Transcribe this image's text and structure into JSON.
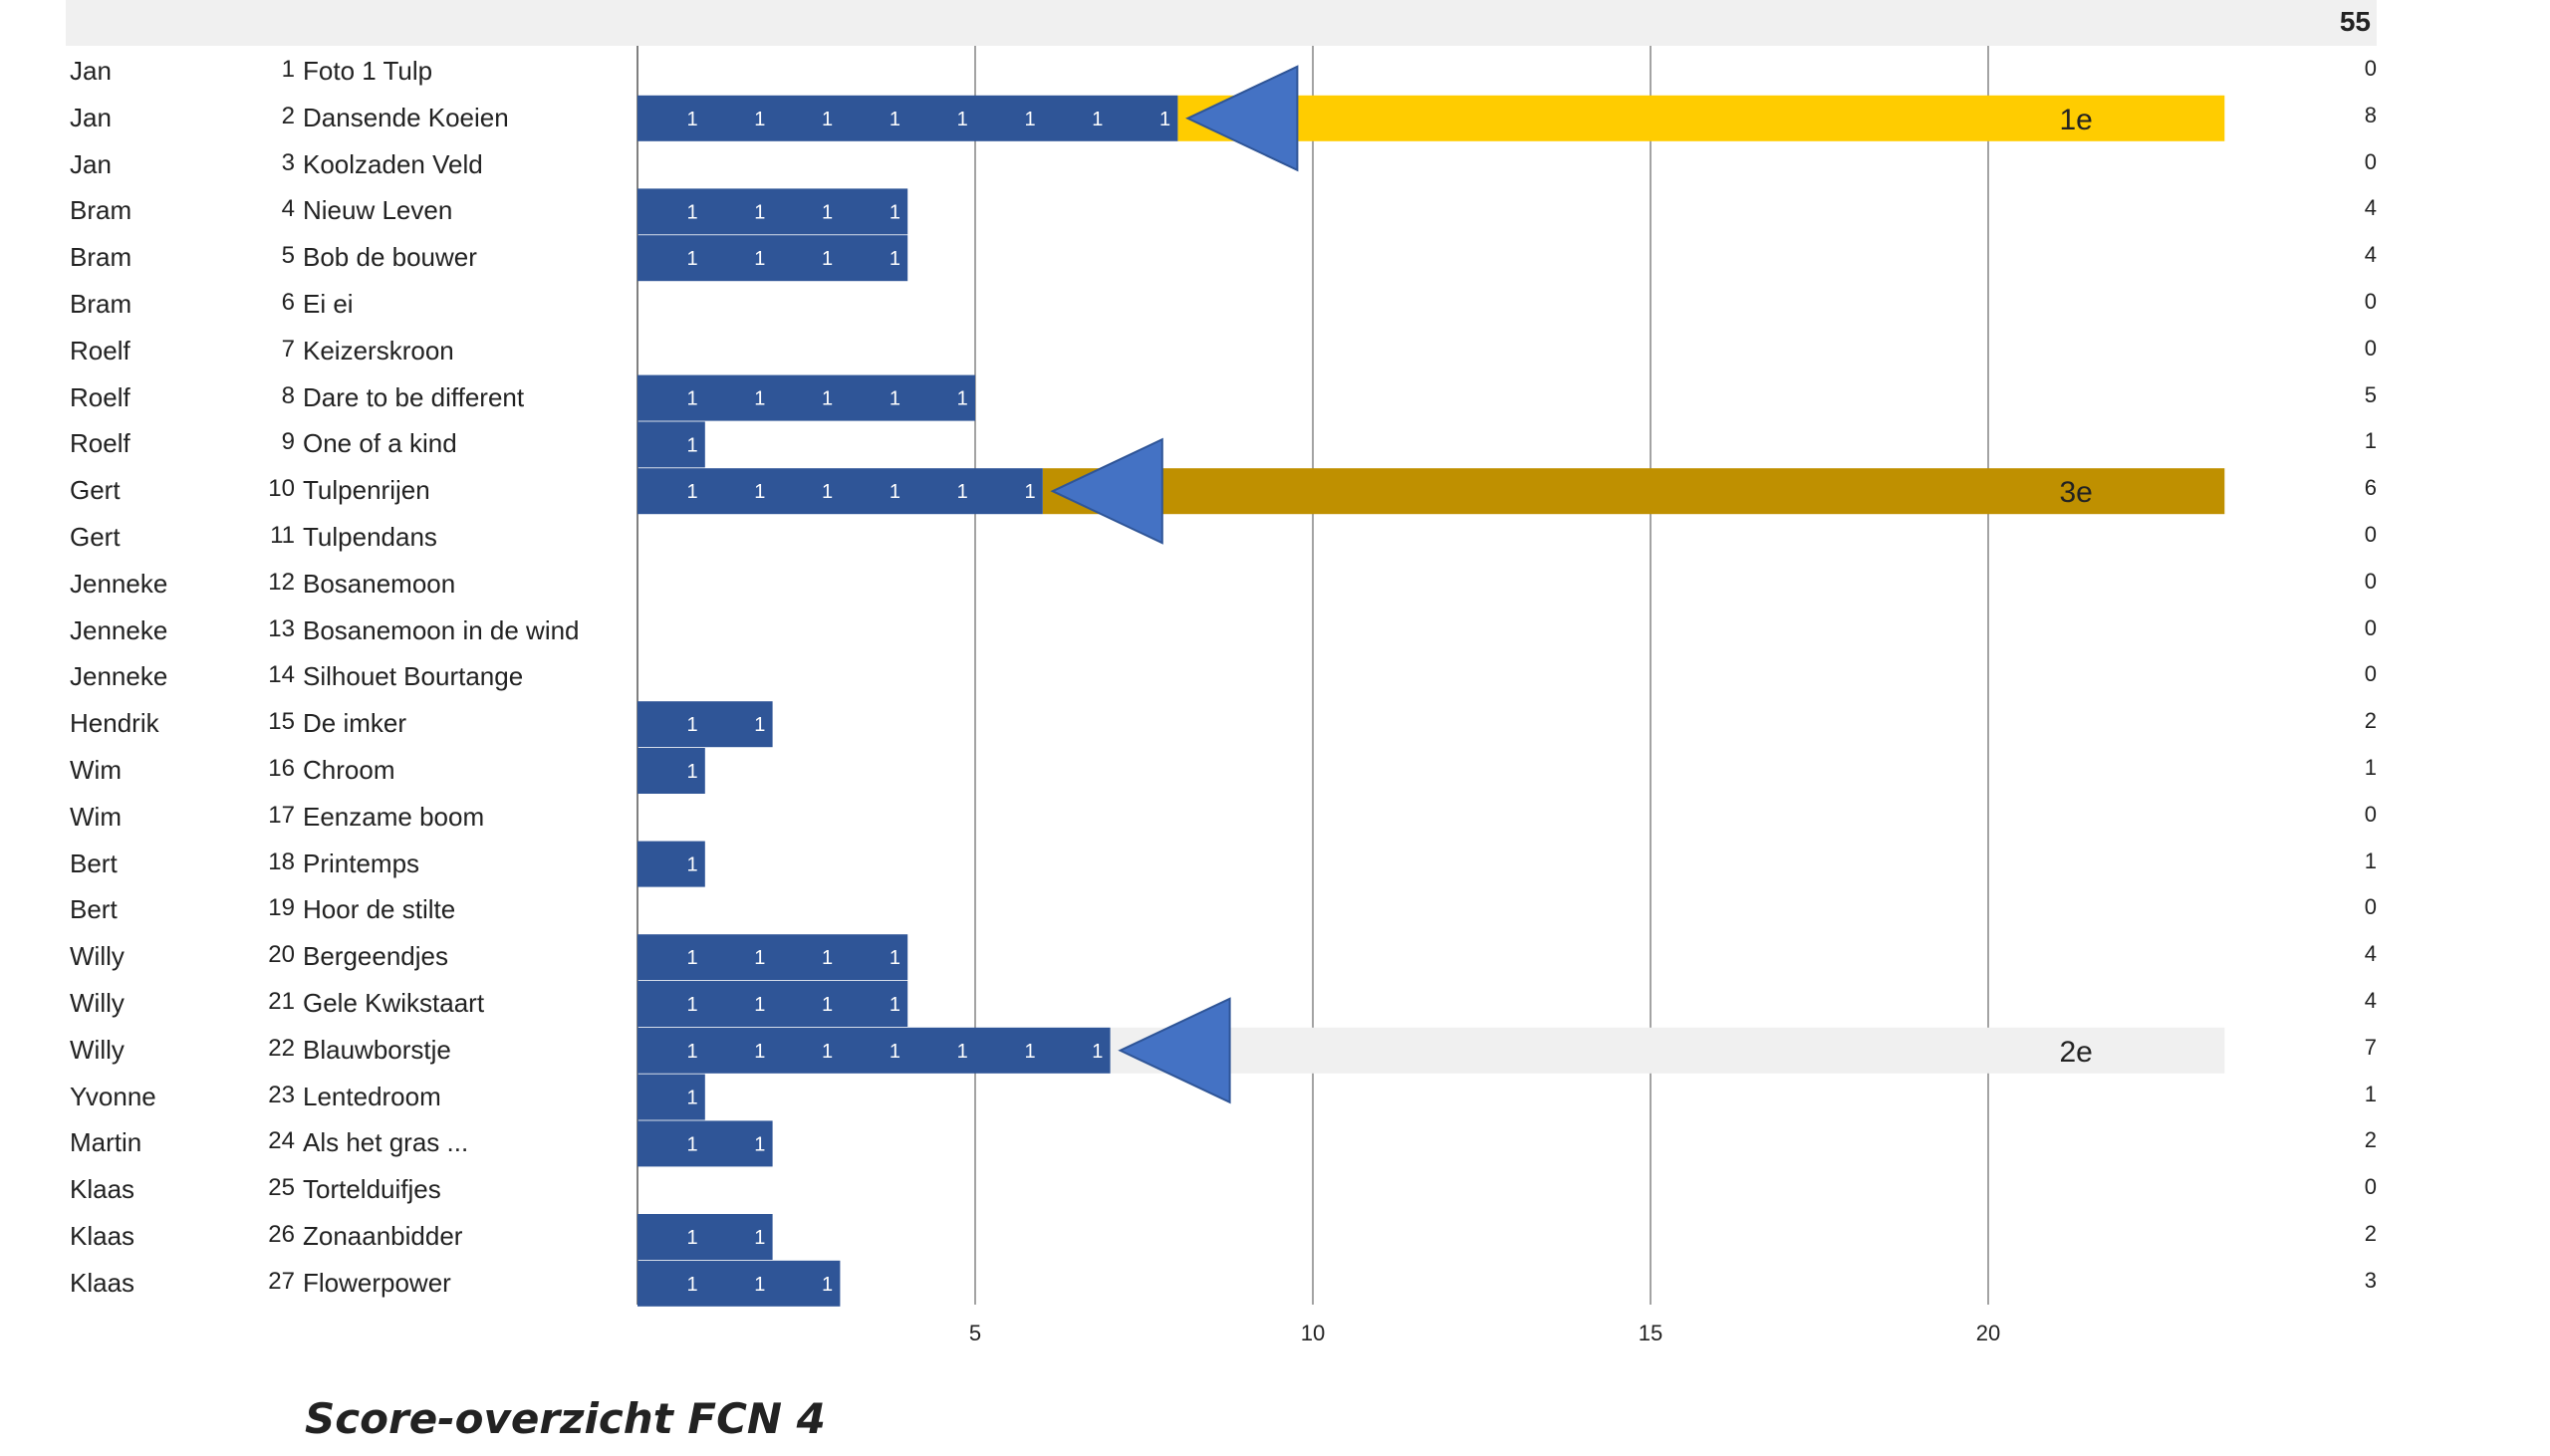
{
  "total": "55",
  "caption": "Score-overzicht FCN 4",
  "chart_data": {
    "type": "bar",
    "orientation": "horizontal",
    "xlim": [
      0,
      24
    ],
    "xticks": [
      5,
      10,
      15,
      20
    ],
    "grid": true,
    "colors": {
      "bar": "#2f5597",
      "arrow": "#4472c4",
      "first": "#ffcc00",
      "second": "#f0f0f0",
      "third": "#bf9000"
    },
    "rows": [
      {
        "photographer": "Jan",
        "num": "1",
        "title": "Foto 1 Tulp",
        "score": 0
      },
      {
        "photographer": "Jan",
        "num": "2",
        "title": "Dansende Koeien",
        "score": 8
      },
      {
        "photographer": "Jan",
        "num": "3",
        "title": "Koolzaden Veld",
        "score": 0
      },
      {
        "photographer": "Bram",
        "num": "4",
        "title": "Nieuw Leven",
        "score": 4
      },
      {
        "photographer": "Bram",
        "num": "5",
        "title": "Bob de bouwer",
        "score": 4
      },
      {
        "photographer": "Bram",
        "num": "6",
        "title": "Ei ei",
        "score": 0
      },
      {
        "photographer": "Roelf",
        "num": "7",
        "title": "Keizerskroon",
        "score": 0
      },
      {
        "photographer": "Roelf",
        "num": "8",
        "title": "Dare to be different",
        "score": 5
      },
      {
        "photographer": "Roelf",
        "num": "9",
        "title": "One of a kind",
        "score": 1
      },
      {
        "photographer": "Gert",
        "num": "10",
        "title": "Tulpenrijen",
        "score": 6
      },
      {
        "photographer": "Gert",
        "num": "11",
        "title": "Tulpendans",
        "score": 0
      },
      {
        "photographer": "Jenneke",
        "num": "12",
        "title": "Bosanemoon",
        "score": 0
      },
      {
        "photographer": "Jenneke",
        "num": "13",
        "title": "Bosanemoon in de wind",
        "score": 0
      },
      {
        "photographer": "Jenneke",
        "num": "14",
        "title": "Silhouet Bourtange",
        "score": 0
      },
      {
        "photographer": "Hendrik",
        "num": "15",
        "title": "De imker",
        "score": 2
      },
      {
        "photographer": "Wim",
        "num": "16",
        "title": "Chroom",
        "score": 1
      },
      {
        "photographer": "Wim",
        "num": "17",
        "title": "Eenzame boom",
        "score": 0
      },
      {
        "photographer": "Bert",
        "num": "18",
        "title": "Printemps",
        "score": 1
      },
      {
        "photographer": "Bert",
        "num": "19",
        "title": "Hoor de stilte",
        "score": 0
      },
      {
        "photographer": "Willy",
        "num": "20",
        "title": "Bergeendjes",
        "score": 4
      },
      {
        "photographer": "Willy",
        "num": "21",
        "title": "Gele Kwikstaart",
        "score": 4
      },
      {
        "photographer": "Willy",
        "num": "22",
        "title": "Blauwborstje",
        "score": 7
      },
      {
        "photographer": "Yvonne",
        "num": "23",
        "title": "Lentedroom",
        "score": 1
      },
      {
        "photographer": "Martin",
        "num": "24",
        "title": "Als het gras ...",
        "score": 2
      },
      {
        "photographer": "Klaas",
        "num": "25",
        "title": "Tortelduifjes",
        "score": 0
      },
      {
        "photographer": "Klaas",
        "num": "26",
        "title": "Zonaanbidder",
        "score": 2
      },
      {
        "photographer": "Klaas",
        "num": "27",
        "title": "Flowerpower",
        "score": 3
      }
    ],
    "placements": [
      {
        "row": 1,
        "label": "1e",
        "color": "first"
      },
      {
        "row": 21,
        "label": "2e",
        "color": "second"
      },
      {
        "row": 9,
        "label": "3e",
        "color": "third"
      }
    ]
  }
}
